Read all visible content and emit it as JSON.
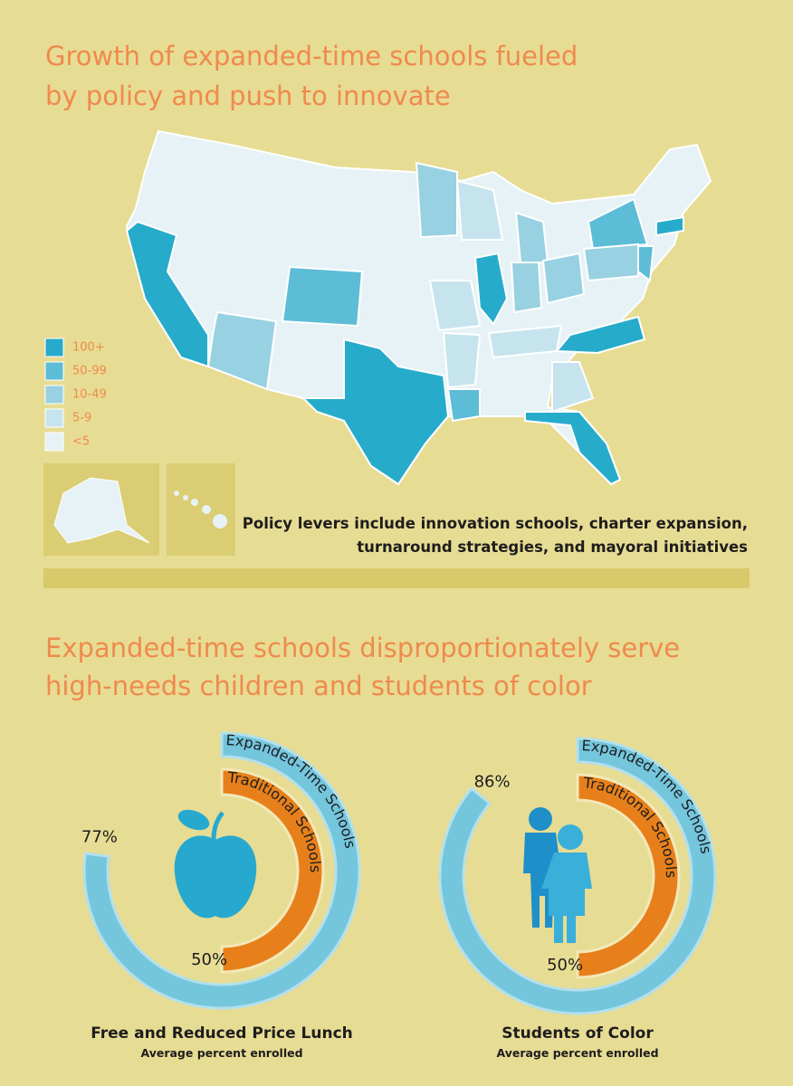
{
  "map_section": {
    "title_lines": [
      "Growth of expanded-time schools fueled",
      "by policy and push to innovate"
    ],
    "legend": [
      {
        "label": "100+",
        "color": "#27abcb"
      },
      {
        "label": "50-99",
        "color": "#5dbcd6"
      },
      {
        "label": "10-49",
        "color": "#98d1e2"
      },
      {
        "label": "5-9",
        "color": "#c6e4ee"
      },
      {
        "label": "<5",
        "color": "#e6f2f5"
      }
    ],
    "note_lines": [
      "Policy levers include innovation schools, charter expansion,",
      "turnaround strategies, and mayoral initiatives"
    ]
  },
  "chart_section": {
    "title_lines": [
      "Expanded-time schools disproportionately serve",
      "high-needs children and students of color"
    ]
  },
  "chart_data": [
    {
      "type": "radial_bar",
      "title": "Free and Reduced Price Lunch",
      "subtitle": "Average percent enrolled",
      "ylim": [
        0,
        100
      ],
      "series": [
        {
          "name": "Expanded-Time Schools",
          "color": "#74c6dd",
          "values": [
            77
          ],
          "value_labels": [
            "77%"
          ]
        },
        {
          "name": "Traditional Schools",
          "color": "#e7801b",
          "values": [
            50
          ],
          "value_labels": [
            "50%"
          ]
        }
      ]
    },
    {
      "type": "radial_bar",
      "title": "Students of Color",
      "subtitle": "Average percent enrolled",
      "ylim": [
        0,
        100
      ],
      "series": [
        {
          "name": "Expanded-Time Schools",
          "color": "#74c6dd",
          "values": [
            86
          ],
          "value_labels": [
            "86%"
          ]
        },
        {
          "name": "Traditional Schools",
          "color": "#e7801b",
          "values": [
            50
          ],
          "value_labels": [
            "50%"
          ]
        }
      ]
    }
  ]
}
